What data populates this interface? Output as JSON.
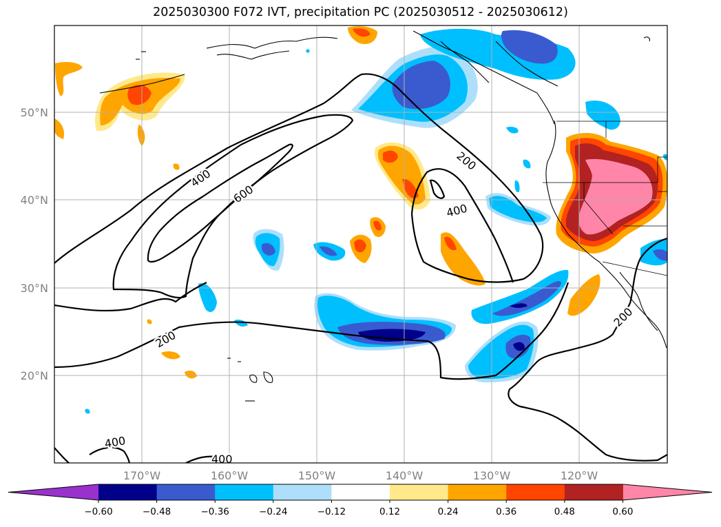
{
  "title": "2025030300 F072 IVT, precipitation PC (2025030512 - 2025030612)",
  "lat_labels": [
    "50°N",
    "40°N",
    "30°N",
    "20°N"
  ],
  "lon_labels": [
    "170°W",
    "160°W",
    "150°W",
    "140°W",
    "130°W",
    "120°W"
  ],
  "colorbar": {
    "labels": [
      "−0.60",
      "−0.48",
      "−0.36",
      "−0.24",
      "−0.12",
      "0.12",
      "0.24",
      "0.36",
      "0.48",
      "0.60"
    ],
    "under_color": "#9932CC",
    "colors": [
      "#00008B",
      "#3A5BD0",
      "#00BFFF",
      "#ADDFFA",
      "#FFFFFF",
      "#FFE98A",
      "#FFA500",
      "#FF4500",
      "#B22222"
    ],
    "over_color": "#FF86A8"
  },
  "contour_labels": [
    "200",
    "400",
    "600",
    "400",
    "200",
    "200",
    "400",
    "400"
  ],
  "colors": {
    "pink": "#FF86A8",
    "darkred": "#B22222",
    "red": "#FF4500",
    "orange": "#FFA500",
    "lightorange": "#FFE98A",
    "lightblue": "#ADDFFA",
    "blue": "#00BFFF",
    "medblue": "#3A5BD0",
    "navy": "#00008B"
  }
}
